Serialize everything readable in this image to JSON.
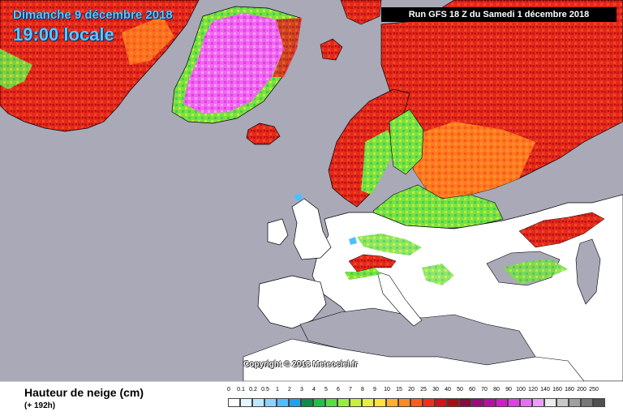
{
  "header": {
    "date": "Dimanche 9 décembre 2018",
    "time": "19:00 locale",
    "run": "Run GFS 18 Z du Samedi 1 décembre 2018"
  },
  "credit": "Copyright © 2018 Meteociel.fr",
  "legend": {
    "title": "Hauteur de neige (cm)",
    "subtitle": "(+ 192h)",
    "labels": [
      "0",
      "0.1",
      "0.2",
      "0.5",
      "1",
      "2",
      "3",
      "4",
      "5",
      "6",
      "7",
      "8",
      "9",
      "10",
      "15",
      "20",
      "25",
      "30",
      "40",
      "50",
      "60",
      "70",
      "80",
      "90",
      "100",
      "120",
      "140",
      "160",
      "180",
      "200",
      "250"
    ],
    "colors": [
      "#ffffff",
      "#e6f6ff",
      "#bfe8ff",
      "#8ed3ff",
      "#4fbfff",
      "#1ea4e6",
      "#0a8f4a",
      "#1ec24a",
      "#55e040",
      "#96ee3a",
      "#c8f03a",
      "#e6f040",
      "#ffe23a",
      "#ffb22a",
      "#ff8a20",
      "#ff5e18",
      "#f2301a",
      "#d0141a",
      "#a80e16",
      "#8a0a3c",
      "#9e0a7a",
      "#b80ea6",
      "#d21ccc",
      "#e040e6",
      "#e670f0",
      "#e8a0f4",
      "#ececec",
      "#c8c8c8",
      "#a0a0a0",
      "#787878",
      "#505050"
    ]
  },
  "map": {
    "sea_color": "#a9a9b8",
    "land_color": "#ffffff",
    "border_color": "#000000"
  }
}
